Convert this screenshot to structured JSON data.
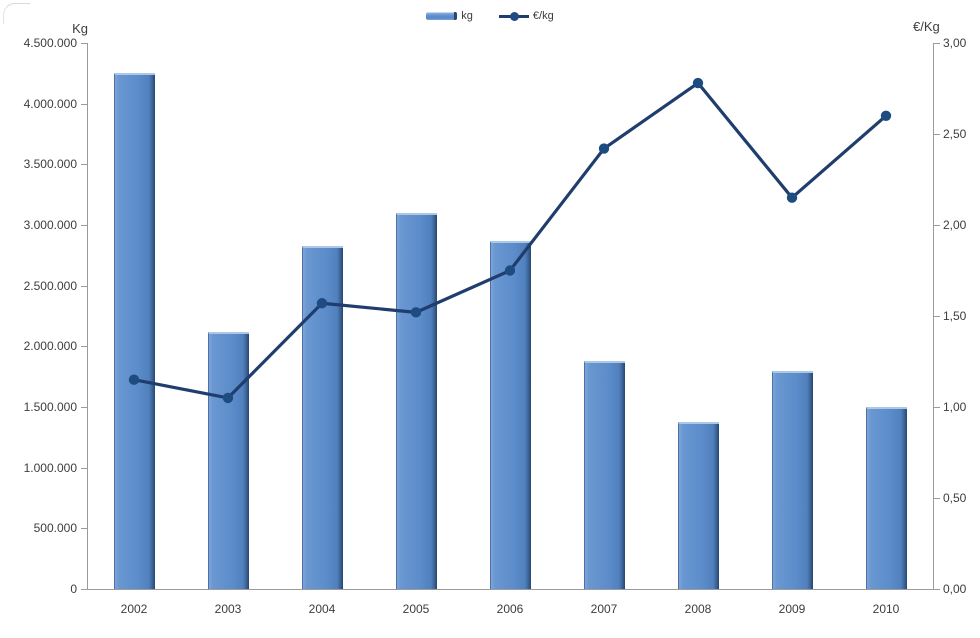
{
  "chart_data": {
    "type": "bar",
    "subtype": "combo-bar-line-dual-axis",
    "title": "",
    "categories": [
      "2002",
      "2003",
      "2004",
      "2005",
      "2006",
      "2007",
      "2008",
      "2009",
      "2010"
    ],
    "series": [
      {
        "name": "kg",
        "type": "bar",
        "axis": "left",
        "values": [
          4250000,
          2120000,
          2830000,
          3100000,
          2870000,
          1880000,
          1380000,
          1800000,
          1500000
        ]
      },
      {
        "name": "€/kg",
        "type": "line",
        "axis": "right",
        "values": [
          1.15,
          1.05,
          1.57,
          1.52,
          1.75,
          2.42,
          2.78,
          2.15,
          2.6
        ]
      }
    ],
    "left_axis": {
      "title": "Kg",
      "min": 0,
      "max": 4500000,
      "step": 500000,
      "tick_labels": [
        "0",
        "500.000",
        "1.000.000",
        "1.500.000",
        "2.000.000",
        "2.500.000",
        "3.000.000",
        "3.500.000",
        "4.000.000",
        "4.500.000"
      ]
    },
    "right_axis": {
      "title": "€/Kg",
      "min": 0,
      "max": 3,
      "step": 0.5,
      "tick_labels": [
        "0,00",
        "0,50",
        "1,00",
        "1,50",
        "2,00",
        "2,50",
        "3,00"
      ]
    },
    "legend": [
      {
        "label": "kg",
        "marker": "bar"
      },
      {
        "label": "€/kg",
        "marker": "line-dot"
      }
    ],
    "grid": false,
    "legend_position": "top-center",
    "colors": {
      "bar_fill": "#5d8dcb",
      "bar_edge_dark": "#27466f",
      "bar_edge_light": "#adc8e6",
      "line": "#1f3d6d",
      "marker": "#1e4b80",
      "axis": "#9b9b9b",
      "text": "#3d3d3d"
    }
  }
}
